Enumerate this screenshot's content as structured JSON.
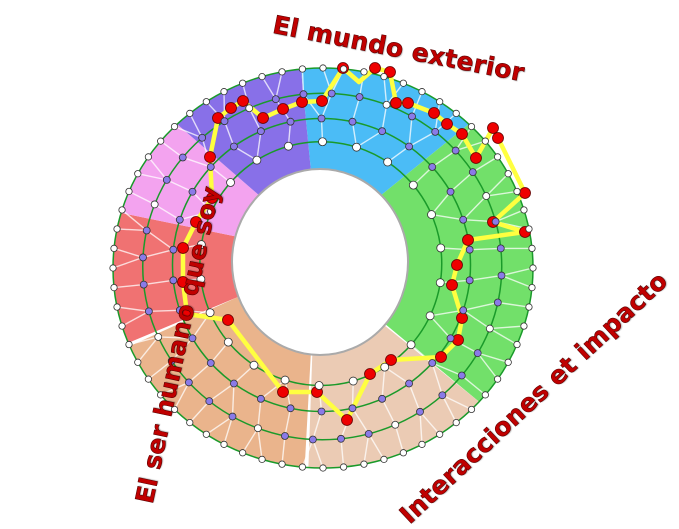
{
  "labels": {
    "top": "El mundo exterior",
    "left": "El ser humano que soy",
    "bottom_right": "Interacciones et impacto"
  },
  "colors": {
    "text": "#c00000",
    "sector_blue": "#4bbcf6",
    "sector_green": "#72e06a",
    "sector_beige": "#ebcbb4",
    "sector_orange": "#eab48c",
    "sector_red": "#f07272",
    "sector_pink": "#f3a3ef",
    "sector_purple": "#8870e8",
    "ring_line": "#1a9a2a",
    "path": "#ffff40",
    "node_red": "#ee0000",
    "node_purple": "#8a7ae8",
    "node_white": "#ffffff"
  }
}
